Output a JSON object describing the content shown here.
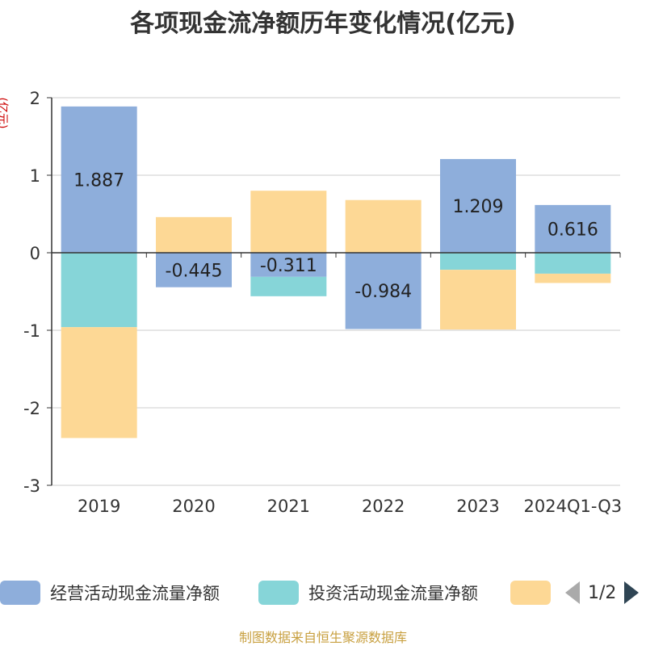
{
  "chart_data": {
    "type": "bar",
    "stacked": true,
    "title": "各项现金流净额历年变化情况(亿元)",
    "ylabel": "(亿元)",
    "ylim": [
      -3,
      2
    ],
    "yticks": [
      2,
      1,
      0,
      -1,
      -2,
      -3
    ],
    "categories": [
      "2019",
      "2020",
      "2021",
      "2022",
      "2023",
      "2024Q1-Q3"
    ],
    "series": [
      {
        "name": "经营活动现金流量净额",
        "color": "#8eaedb",
        "values": [
          1.887,
          -0.445,
          -0.311,
          -0.984,
          1.209,
          0.616
        ],
        "labels": [
          "1.887",
          "-0.445",
          "-0.311",
          "-0.984",
          "1.209",
          "0.616"
        ]
      },
      {
        "name": "投资活动现金流量净额",
        "color": "#86d5d8",
        "values": [
          -0.96,
          0.0,
          -0.25,
          0.0,
          -0.22,
          -0.27
        ]
      },
      {
        "name": "",
        "color": "#fdd895",
        "values": [
          -1.43,
          0.46,
          0.8,
          0.68,
          -0.77,
          -0.12
        ]
      }
    ]
  },
  "legend": {
    "pager_text": "1/2"
  },
  "source": "制图数据来自恒生聚源数据库",
  "colors": {
    "axis": "#333333",
    "grid": "#cccccc",
    "unit": "#cc0000",
    "source": "#c8a040"
  }
}
